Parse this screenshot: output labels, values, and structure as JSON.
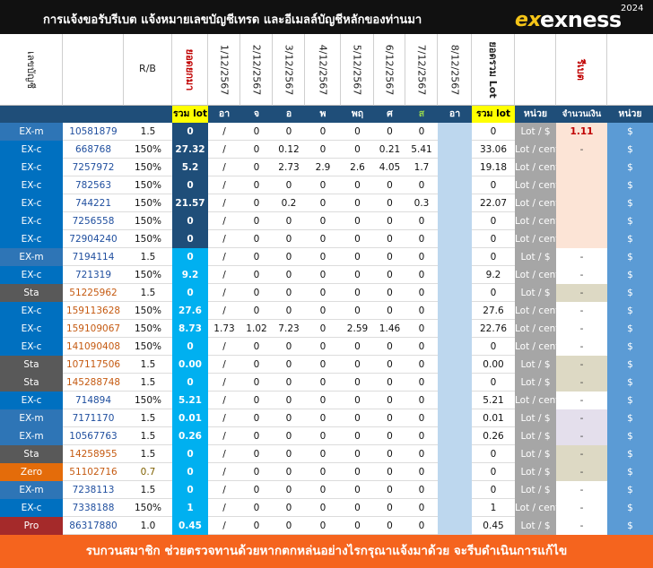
{
  "header": {
    "title": "การแจ้งขอรับรีเบต  แจ้งหมายเลขบัญชีเทรด และอีเมลล์บัญชีหลักของท่านมา",
    "logo_mark": "ex",
    "logo_word": "exness",
    "logo_year": "2024"
  },
  "columns": {
    "acct_label": "เลขบัญชี",
    "rb_label": "R/B",
    "slot_label": "ยอดยกมา",
    "dates": [
      "1/12/2567",
      "2/12/2567",
      "3/12/2567",
      "4/12/2567",
      "5/12/2567",
      "6/12/2567",
      "7/12/2567",
      "8/12/2567"
    ],
    "total_lot_label": "ยอดรวม Lot",
    "rebate_label": "รีเบต"
  },
  "subheader": {
    "total_lot": "รวม lot",
    "days": [
      "อา",
      "จ",
      "อ",
      "พ",
      "พฤ",
      "ศ",
      "ส",
      "อา"
    ],
    "total_lot2": "รวม lot",
    "unit": "หน่วย",
    "amount": "จำนวนเงิน",
    "unit2": "หน่วย"
  },
  "rows": [
    {
      "type": "EX-m",
      "acct": "10581879",
      "rb": "1.5",
      "total": "0",
      "d1": "/",
      "d2": "0",
      "d3": "0",
      "d4": "0",
      "d5": "0",
      "d6": "0",
      "d7": "0",
      "sum": "0",
      "unit": "Lot / $",
      "amt": "1.11",
      "cur": "$"
    },
    {
      "type": "EX-c",
      "acct": "668768",
      "rb": "150%",
      "total": "27.32",
      "d1": "/",
      "d2": "0",
      "d3": "0.12",
      "d4": "0",
      "d5": "0",
      "d6": "0.21",
      "d7": "5.41",
      "sum": "33.06",
      "unit": "Lot / cent",
      "amt": "-",
      "cur": "$"
    },
    {
      "type": "EX-c",
      "acct": "7257972",
      "rb": "150%",
      "total": "5.2",
      "d1": "/",
      "d2": "0",
      "d3": "2.73",
      "d4": "2.9",
      "d5": "2.6",
      "d6": "4.05",
      "d7": "1.7",
      "sum": "19.18",
      "unit": "Lot / cent",
      "amt": "",
      "cur": "$"
    },
    {
      "type": "EX-c",
      "acct": "782563",
      "rb": "150%",
      "total": "0",
      "d1": "/",
      "d2": "0",
      "d3": "0",
      "d4": "0",
      "d5": "0",
      "d6": "0",
      "d7": "0",
      "sum": "0",
      "unit": "Lot / cent",
      "amt": "",
      "cur": "$"
    },
    {
      "type": "EX-c",
      "acct": "744221",
      "rb": "150%",
      "total": "21.57",
      "d1": "/",
      "d2": "0",
      "d3": "0.2",
      "d4": "0",
      "d5": "0",
      "d6": "0",
      "d7": "0.3",
      "sum": "22.07",
      "unit": "Lot / cent",
      "amt": "",
      "cur": "$"
    },
    {
      "type": "EX-c",
      "acct": "7256558",
      "rb": "150%",
      "total": "0",
      "d1": "/",
      "d2": "0",
      "d3": "0",
      "d4": "0",
      "d5": "0",
      "d6": "0",
      "d7": "0",
      "sum": "0",
      "unit": "Lot / cent",
      "amt": "",
      "cur": "$"
    },
    {
      "type": "EX-c",
      "acct": "72904240",
      "rb": "150%",
      "total": "0",
      "d1": "/",
      "d2": "0",
      "d3": "0",
      "d4": "0",
      "d5": "0",
      "d6": "0",
      "d7": "0",
      "sum": "0",
      "unit": "Lot / cent",
      "amt": "",
      "cur": "$"
    },
    {
      "type": "EX-m",
      "acct": "7194114",
      "rb": "1.5",
      "total": "0",
      "d1": "/",
      "d2": "0",
      "d3": "0",
      "d4": "0",
      "d5": "0",
      "d6": "0",
      "d7": "0",
      "sum": "0",
      "unit": "Lot / $",
      "amt": "-",
      "cur": "$"
    },
    {
      "type": "EX-c",
      "acct": "721319",
      "rb": "150%",
      "total": "9.2",
      "d1": "/",
      "d2": "0",
      "d3": "0",
      "d4": "0",
      "d5": "0",
      "d6": "0",
      "d7": "0",
      "sum": "9.2",
      "unit": "Lot / cent",
      "amt": "-",
      "cur": "$"
    },
    {
      "type": "Sta",
      "acct": "51225962",
      "rb": "1.5",
      "total": "0",
      "d1": "/",
      "d2": "0",
      "d3": "0",
      "d4": "0",
      "d5": "0",
      "d6": "0",
      "d7": "0",
      "sum": "0",
      "unit": "Lot / $",
      "amt": "-",
      "cur": "$"
    },
    {
      "type": "EX-c",
      "acct": "159113628",
      "rb": "150%",
      "total": "27.6",
      "d1": "/",
      "d2": "0",
      "d3": "0",
      "d4": "0",
      "d5": "0",
      "d6": "0",
      "d7": "0",
      "sum": "27.6",
      "unit": "Lot / cent",
      "amt": "-",
      "cur": "$"
    },
    {
      "type": "EX-c",
      "acct": "159109067",
      "rb": "150%",
      "total": "8.73",
      "d1": "1.73",
      "d2": "1.02",
      "d3": "7.23",
      "d4": "0",
      "d5": "2.59",
      "d6": "1.46",
      "d7": "0",
      "sum": "22.76",
      "unit": "Lot / cent",
      "amt": "-",
      "cur": "$"
    },
    {
      "type": "EX-c",
      "acct": "141090408",
      "rb": "150%",
      "total": "0",
      "d1": "/",
      "d2": "0",
      "d3": "0",
      "d4": "0",
      "d5": "0",
      "d6": "0",
      "d7": "0",
      "sum": "0",
      "unit": "Lot / cent",
      "amt": "-",
      "cur": "$"
    },
    {
      "type": "Sta",
      "acct": "107117506",
      "rb": "1.5",
      "total": "0.00",
      "d1": "/",
      "d2": "0",
      "d3": "0",
      "d4": "0",
      "d5": "0",
      "d6": "0",
      "d7": "0",
      "sum": "0.00",
      "unit": "Lot / $",
      "amt": "-",
      "cur": "$"
    },
    {
      "type": "Sta",
      "acct": "145288748",
      "rb": "1.5",
      "total": "0",
      "d1": "/",
      "d2": "0",
      "d3": "0",
      "d4": "0",
      "d5": "0",
      "d6": "0",
      "d7": "0",
      "sum": "0",
      "unit": "Lot / $",
      "amt": "-",
      "cur": "$"
    },
    {
      "type": "EX-c",
      "acct": "714894",
      "rb": "150%",
      "total": "5.21",
      "d1": "/",
      "d2": "0",
      "d3": "0",
      "d4": "0",
      "d5": "0",
      "d6": "0",
      "d7": "0",
      "sum": "5.21",
      "unit": "Lot / cent",
      "amt": "-",
      "cur": "$"
    },
    {
      "type": "EX-m",
      "acct": "7171170",
      "rb": "1.5",
      "total": "0.01",
      "d1": "/",
      "d2": "0",
      "d3": "0",
      "d4": "0",
      "d5": "0",
      "d6": "0",
      "d7": "0",
      "sum": "0.01",
      "unit": "Lot / $",
      "amt": "-",
      "cur": "$"
    },
    {
      "type": "EX-m",
      "acct": "10567763",
      "rb": "1.5",
      "total": "0.26",
      "d1": "/",
      "d2": "0",
      "d3": "0",
      "d4": "0",
      "d5": "0",
      "d6": "0",
      "d7": "0",
      "sum": "0.26",
      "unit": "Lot / $",
      "amt": "-",
      "cur": "$"
    },
    {
      "type": "Sta",
      "acct": "14258955",
      "rb": "1.5",
      "total": "0",
      "d1": "/",
      "d2": "0",
      "d3": "0",
      "d4": "0",
      "d5": "0",
      "d6": "0",
      "d7": "0",
      "sum": "0",
      "unit": "Lot / $",
      "amt": "-",
      "cur": "$"
    },
    {
      "type": "Zero",
      "acct": "51102716",
      "rb": "0.7",
      "total": "0",
      "d1": "/",
      "d2": "0",
      "d3": "0",
      "d4": "0",
      "d5": "0",
      "d6": "0",
      "d7": "0",
      "sum": "0",
      "unit": "Lot / $",
      "amt": "-",
      "cur": "$"
    },
    {
      "type": "EX-m",
      "acct": "7238113",
      "rb": "1.5",
      "total": "0",
      "d1": "/",
      "d2": "0",
      "d3": "0",
      "d4": "0",
      "d5": "0",
      "d6": "0",
      "d7": "0",
      "sum": "0",
      "unit": "Lot / $",
      "amt": "-",
      "cur": "$"
    },
    {
      "type": "EX-c",
      "acct": "7338188",
      "rb": "150%",
      "total": "1",
      "d1": "/",
      "d2": "0",
      "d3": "0",
      "d4": "0",
      "d5": "0",
      "d6": "0",
      "d7": "0",
      "sum": "1",
      "unit": "Lot / cent",
      "amt": "-",
      "cur": "$"
    },
    {
      "type": "Pro",
      "acct": "86317880",
      "rb": "1.0",
      "total": "0.45",
      "d1": "/",
      "d2": "0",
      "d3": "0",
      "d4": "0",
      "d5": "0",
      "d6": "0",
      "d7": "0",
      "sum": "0.45",
      "unit": "Lot / $",
      "amt": "-",
      "cur": "$"
    }
  ],
  "footer": {
    "text": "รบกวนสมาชิก ช่วยตรวจทานด้วยหากตกหล่นอย่างไรกรุณาแจ้งมาด้วย จะรีบดำเนินการแก้ไข"
  },
  "colors": {
    "EX-m": "#2e75b6",
    "EX-c": "#0070c0",
    "Sta": "#595959",
    "Zero": "#e46c0a",
    "Pro": "#a52a2a"
  }
}
